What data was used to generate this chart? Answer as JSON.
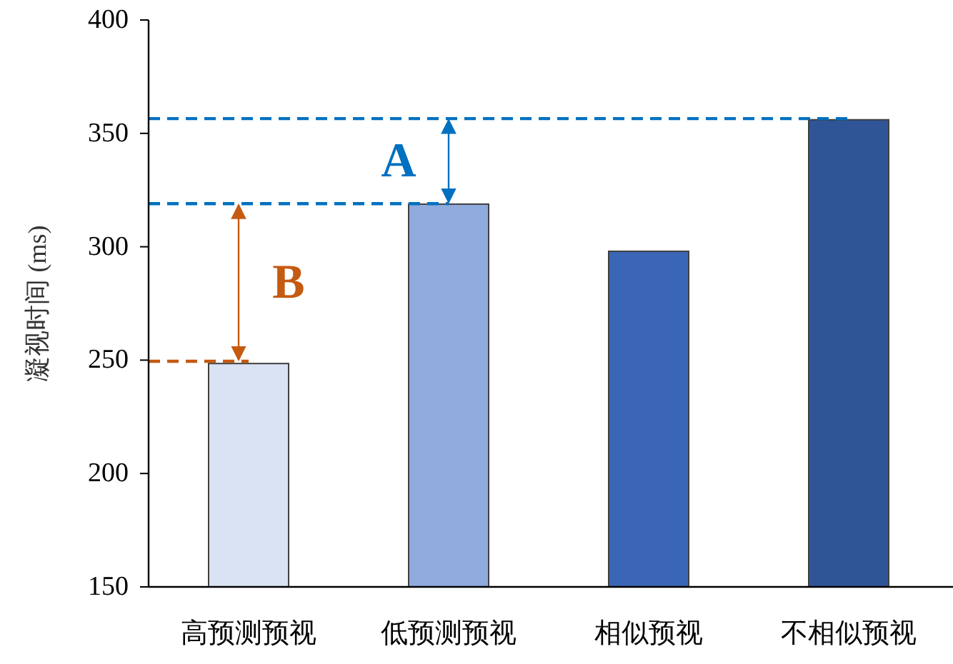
{
  "chart_data": {
    "type": "bar",
    "ylabel": "凝视时间 (ms)",
    "categories": [
      "高预测预视",
      "低预测预视",
      "相似预视",
      "不相似预视"
    ],
    "values": [
      248.5,
      318.8,
      298,
      356
    ],
    "colors": [
      "#dae3f3",
      "#8faadc",
      "#3a66b5",
      "#2f5597"
    ],
    "ylim": [
      150,
      400
    ],
    "yticks": [
      150,
      200,
      250,
      300,
      350,
      400
    ],
    "grid": false,
    "ref_lines": [
      {
        "axis": "y",
        "value": 356.5,
        "color": "#0070c0",
        "line_style": "dashed"
      },
      {
        "axis": "y",
        "value": 319,
        "color": "#0070c0",
        "line_style": "dashed"
      },
      {
        "axis": "y",
        "value": 249.5,
        "color": "#c55a11",
        "line_style": "dashed"
      }
    ],
    "annotations": [
      "A",
      "B"
    ]
  }
}
